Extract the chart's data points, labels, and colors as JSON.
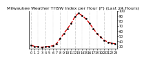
{
  "title": "Milwaukee Weather THSW Index per Hour (F) (Last 24 Hours)",
  "hours": [
    0,
    1,
    2,
    3,
    4,
    5,
    6,
    7,
    8,
    9,
    10,
    11,
    12,
    13,
    14,
    15,
    16,
    17,
    18,
    19,
    20,
    21,
    22,
    23
  ],
  "values": [
    32,
    30,
    29,
    28,
    29,
    30,
    31,
    35,
    45,
    55,
    65,
    75,
    88,
    95,
    90,
    84,
    75,
    65,
    55,
    48,
    42,
    38,
    36,
    35
  ],
  "line_color": "#dd0000",
  "marker_color": "#000000",
  "bg_color": "#ffffff",
  "grid_color": "#777777",
  "ylim": [
    25,
    100
  ],
  "ytick_values": [
    30,
    40,
    50,
    60,
    70,
    80,
    90,
    100
  ],
  "ytick_labels": [
    "30",
    "40",
    "50",
    "60",
    "70",
    "80",
    "90",
    "100"
  ],
  "grid_hours": [
    0,
    4,
    8,
    12,
    16,
    20
  ],
  "title_fontsize": 4.5,
  "tick_fontsize": 3.5,
  "line_width": 1.0,
  "marker_size": 1.5
}
